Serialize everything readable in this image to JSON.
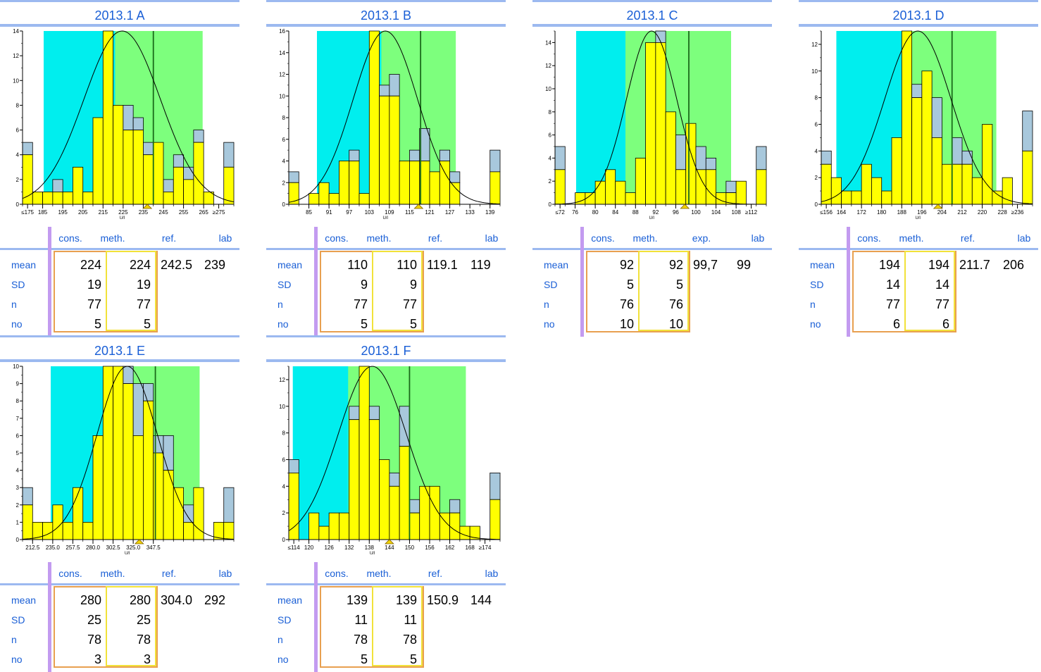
{
  "colors": {
    "cyan": "#00eeee",
    "green": "#7dff7d",
    "yellow": "#ffff00",
    "grayblue": "#a8c8dc",
    "header_blue": "#1a5fd6",
    "line_blue": "#9cb9f0",
    "purple": "#c39bf0",
    "orange": "#e8a050"
  },
  "row_labels": [
    "mean",
    "SD",
    "n",
    "no"
  ],
  "panels": [
    {
      "title": "2013.1 A",
      "headers": [
        "cons.",
        "meth.",
        "ref.",
        "lab"
      ],
      "stats": {
        "cons": [
          "224",
          "19",
          "77",
          "5"
        ],
        "meth": [
          "224",
          "19",
          "77",
          "5"
        ],
        "ref": "242.5",
        "lab": "239"
      }
    },
    {
      "title": "2013.1 B",
      "headers": [
        "cons.",
        "meth.",
        "ref.",
        "lab"
      ],
      "stats": {
        "cons": [
          "110",
          "9",
          "77",
          "5"
        ],
        "meth": [
          "110",
          "9",
          "77",
          "5"
        ],
        "ref": "119.1",
        "lab": "119"
      }
    },
    {
      "title": "2013.1 C",
      "headers": [
        "cons.",
        "meth.",
        "exp.",
        "lab"
      ],
      "stats": {
        "cons": [
          "92",
          "5",
          "76",
          "10"
        ],
        "meth": [
          "92",
          "5",
          "76",
          "10"
        ],
        "ref": "99,7",
        "lab": "99"
      }
    },
    {
      "title": "2013.1 D",
      "headers": [
        "cons.",
        "meth.",
        "ref.",
        "lab"
      ],
      "stats": {
        "cons": [
          "194",
          "14",
          "77",
          "6"
        ],
        "meth": [
          "194",
          "14",
          "77",
          "6"
        ],
        "ref": "211.7",
        "lab": "206"
      }
    },
    {
      "title": "2013.1 E",
      "headers": [
        "cons.",
        "meth.",
        "ref.",
        "lab"
      ],
      "stats": {
        "cons": [
          "280",
          "25",
          "78",
          "3"
        ],
        "meth": [
          "280",
          "25",
          "78",
          "3"
        ],
        "ref": "304.0",
        "lab": "292"
      }
    },
    {
      "title": "2013.1 F",
      "headers": [
        "cons.",
        "meth.",
        "ref.",
        "lab"
      ],
      "stats": {
        "cons": [
          "139",
          "11",
          "78",
          "5"
        ],
        "meth": [
          "139",
          "11",
          "78",
          "5"
        ],
        "ref": "150.9",
        "lab": "144"
      }
    }
  ],
  "chart_data": [
    {
      "type": "bar",
      "title": "2013.1 A",
      "xlabel": "U/l",
      "ymax": 14,
      "yticks": [
        0,
        2,
        4,
        6,
        8,
        10,
        12,
        14
      ],
      "nbins": 19,
      "xticklabels": [
        [
          "≤175",
          0
        ],
        [
          "185",
          1.5
        ],
        [
          "195",
          3.5
        ],
        [
          "205",
          5.5
        ],
        [
          "215",
          7.5
        ],
        [
          "225",
          9.5
        ],
        [
          "235",
          11.5
        ],
        [
          "245",
          13.5
        ],
        [
          "255",
          15.5
        ],
        [
          "265",
          17.5
        ],
        [
          "≥275",
          19
        ]
      ],
      "yellow": [
        4,
        1,
        1,
        1,
        1,
        3,
        1,
        7,
        14,
        8,
        6,
        6,
        4,
        5,
        1,
        3,
        2,
        5,
        1,
        0,
        3
      ],
      "gray": [
        1,
        0,
        0,
        1,
        0,
        0,
        0,
        0,
        0,
        0,
        2,
        1,
        1,
        0,
        1,
        1,
        1,
        1,
        0,
        0,
        2
      ],
      "cyan": [
        2.1,
        16.6
      ],
      "green": [
        9.2,
        17.9
      ],
      "refline": 13.0,
      "lab_marker": 12.4,
      "curve_mean": 9.9,
      "curve_sd": 3.8,
      "curve_peak": 14
    },
    {
      "type": "bar",
      "title": "2013.1 B",
      "xlabel": "U/l",
      "ymax": 16,
      "yticks": [
        0,
        2,
        4,
        6,
        8,
        10,
        12,
        14,
        16
      ],
      "nbins": 19,
      "xticklabels": [
        [
          "85",
          1.5
        ],
        [
          "91",
          3.5
        ],
        [
          "97",
          5.5
        ],
        [
          "103",
          7.5
        ],
        [
          "109",
          9.5
        ],
        [
          "115",
          11.5
        ],
        [
          "121",
          13.5
        ],
        [
          "127",
          15.5
        ],
        [
          "133",
          17.5
        ],
        [
          "139",
          19.5
        ]
      ],
      "yellow": [
        2,
        0,
        1,
        2,
        1,
        4,
        4,
        1,
        16,
        10,
        10,
        4,
        4,
        4,
        3,
        4,
        2,
        0,
        0,
        0,
        3
      ],
      "gray": [
        1,
        0,
        0,
        0,
        0,
        0,
        1,
        0,
        0,
        1,
        2,
        0,
        1,
        3,
        0,
        1,
        1,
        0,
        0,
        0,
        2
      ],
      "cyan": [
        2.8,
        15.6
      ],
      "green": [
        9.2,
        16.6
      ],
      "refline": 13.1,
      "lab_marker": 12.9,
      "curve_mean": 9.6,
      "curve_sd": 3.2,
      "curve_peak": 16
    },
    {
      "type": "bar",
      "title": "2013.1 C",
      "xlabel": "U/l",
      "ymax": 15,
      "yticks": [
        0,
        2,
        4,
        6,
        8,
        10,
        12,
        14
      ],
      "nbins": 19,
      "xticklabels": [
        [
          "≤72",
          0
        ],
        [
          "76",
          1.5
        ],
        [
          "80",
          3.5
        ],
        [
          "84",
          5.5
        ],
        [
          "88",
          7.5
        ],
        [
          "92",
          9.5
        ],
        [
          "96",
          11.5
        ],
        [
          "100",
          13.5
        ],
        [
          "104",
          15.5
        ],
        [
          "108",
          17.5
        ],
        [
          "≥112",
          19
        ]
      ],
      "yellow": [
        3,
        0,
        1,
        1,
        2,
        3,
        2,
        1,
        4,
        14,
        14,
        8,
        3,
        7,
        3,
        3,
        1,
        1,
        2,
        0,
        3
      ],
      "gray": [
        2,
        0,
        0,
        0,
        0,
        0,
        0,
        0,
        0,
        0,
        1,
        0,
        3,
        0,
        2,
        1,
        0,
        1,
        0,
        0,
        2
      ],
      "cyan": [
        2.1,
        16.6
      ],
      "green": [
        7.0,
        17.5
      ],
      "refline": 13.3,
      "lab_marker": 12.9,
      "curve_mean": 9.6,
      "curve_sd": 2.5,
      "curve_peak": 15
    },
    {
      "type": "bar",
      "title": "2013.1 D",
      "xlabel": "U/l",
      "ymax": 13,
      "yticks": [
        0,
        2,
        4,
        6,
        8,
        10,
        12
      ],
      "nbins": 19,
      "xticklabels": [
        [
          "≤156",
          0
        ],
        [
          "164",
          1.5
        ],
        [
          "172",
          3.5
        ],
        [
          "180",
          5.5
        ],
        [
          "188",
          7.5
        ],
        [
          "196",
          9.5
        ],
        [
          "204",
          11.5
        ],
        [
          "212",
          13.5
        ],
        [
          "220",
          15.5
        ],
        [
          "228",
          17.5
        ],
        [
          "≥236",
          19
        ]
      ],
      "yellow": [
        3,
        2,
        1,
        1,
        3,
        2,
        1,
        5,
        13,
        8,
        10,
        5,
        3,
        3,
        3,
        2,
        6,
        1,
        2,
        0,
        4
      ],
      "gray": [
        1,
        0,
        0,
        0,
        0,
        0,
        0,
        0,
        0,
        1,
        0,
        3,
        0,
        2,
        1,
        0,
        0,
        0,
        0,
        0,
        3
      ],
      "cyan": [
        1.5,
        16.7
      ],
      "green": [
        8.8,
        17.4
      ],
      "refline": 13.0,
      "lab_marker": 11.6,
      "curve_mean": 9.6,
      "curve_sd": 3.3,
      "curve_peak": 13
    },
    {
      "type": "bar",
      "title": "2013.1 E",
      "xlabel": "U/l",
      "ymax": 10,
      "yticks": [
        0,
        1,
        2,
        3,
        4,
        5,
        6,
        7,
        8,
        9,
        10
      ],
      "nbins": 19,
      "xticklabels": [
        [
          "212.5",
          0.5
        ],
        [
          "235.0",
          2.5
        ],
        [
          "257.5",
          4.5
        ],
        [
          "280.0",
          6.5
        ],
        [
          "302.5",
          8.5
        ],
        [
          "325.0",
          10.5
        ],
        [
          "347.5",
          12.5
        ]
      ],
      "yellow": [
        2,
        1,
        1,
        2,
        1,
        3,
        1,
        6,
        10,
        10,
        9,
        6,
        8,
        5,
        4,
        3,
        1,
        3,
        0,
        1,
        1
      ],
      "gray": [
        1,
        0,
        0,
        0,
        0,
        0,
        0,
        0,
        0,
        0,
        1,
        3,
        1,
        1,
        2,
        0,
        1,
        0,
        0,
        0,
        2
      ],
      "cyan": [
        2.8,
        16.3
      ],
      "green": [
        8.7,
        17.6
      ],
      "refline": 13.2,
      "lab_marker": 11.6,
      "curve_mean": 10.4,
      "curve_sd": 3.0,
      "curve_peak": 10
    },
    {
      "type": "bar",
      "title": "2013.1 F",
      "xlabel": "U/l",
      "ymax": 13,
      "yticks": [
        0,
        2,
        4,
        6,
        8,
        10,
        12
      ],
      "nbins": 19,
      "xticklabels": [
        [
          "≤114",
          0
        ],
        [
          "120",
          1.5
        ],
        [
          "126",
          3.5
        ],
        [
          "132",
          5.5
        ],
        [
          "138",
          7.5
        ],
        [
          "144",
          9.5
        ],
        [
          "150",
          11.5
        ],
        [
          "156",
          13.5
        ],
        [
          "162",
          15.5
        ],
        [
          "168",
          17.5
        ],
        [
          "≥174",
          19
        ]
      ],
      "yellow": [
        5,
        0,
        2,
        1,
        2,
        2,
        9,
        13,
        9,
        6,
        4,
        7,
        2,
        4,
        4,
        2,
        2,
        1,
        1,
        0,
        3
      ],
      "gray": [
        1,
        0,
        0,
        0,
        0,
        0,
        1,
        0,
        1,
        0,
        1,
        3,
        1,
        0,
        0,
        0,
        1,
        0,
        0,
        0,
        2
      ],
      "cyan": [
        0.4,
        16.3
      ],
      "green": [
        5.9,
        17.6
      ],
      "refline": 12.0,
      "lab_marker": 10.0,
      "curve_mean": 8.3,
      "curve_sd": 3.4,
      "curve_peak": 13
    }
  ]
}
